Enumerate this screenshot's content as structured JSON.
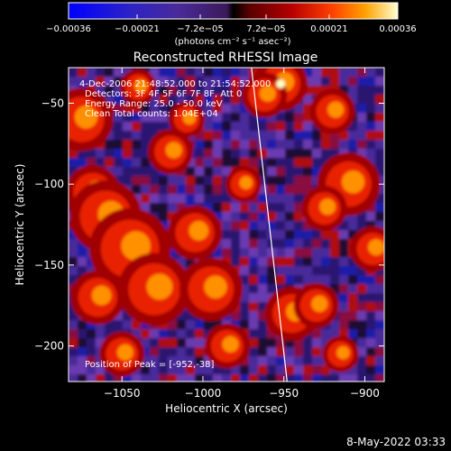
{
  "colorbar": {
    "unit_label": "(photons cm⁻² s⁻¹ asec⁻²)",
    "ticks": [
      {
        "value": -0.00036,
        "label": "−0.00036"
      },
      {
        "value": -0.00021,
        "label": "−0.00021"
      },
      {
        "value": -7.2e-05,
        "label": "−7.2e−05"
      },
      {
        "value": 7.2e-05,
        "label": "7.2e−05"
      },
      {
        "value": 0.00021,
        "label": "0.00021"
      },
      {
        "value": 0.00036,
        "label": "0.00036"
      }
    ],
    "range": [
      -0.00036,
      0.00036
    ]
  },
  "chart_data": {
    "type": "heatmap",
    "title": "Reconstructed RHESSI Image",
    "xlabel": "Heliocentric X (arcsec)",
    "ylabel": "Heliocentric Y (arcsec)",
    "xlim": [
      -1083,
      -888
    ],
    "ylim": [
      -222,
      -28
    ],
    "xticks": [
      {
        "value": -1050,
        "label": "−1050"
      },
      {
        "value": -1000,
        "label": "−1000"
      },
      {
        "value": -950,
        "label": "−950"
      },
      {
        "value": -900,
        "label": "−900"
      }
    ],
    "yticks": [
      {
        "value": -50,
        "label": "−50"
      },
      {
        "value": -100,
        "label": "−100"
      },
      {
        "value": -150,
        "label": "−150"
      },
      {
        "value": -200,
        "label": "−200"
      }
    ],
    "annotations": [
      "4-Dec-2006 21:48:52.000 to 21:54:52.000",
      "Detectors: 3F 4F 5F 6F 7F 8F, Att 0",
      "Energy Range: 25.0 - 50.0 keV",
      "Clean    Total counts: 1.04E+04",
      "Position of Peak = [-952,-38]"
    ],
    "peak": {
      "x": -952,
      "y": -38
    },
    "limb_line": [
      [
        -970,
        -28
      ],
      [
        -948,
        -222
      ]
    ]
  },
  "footer": {
    "date": "8-May-2022 03:33"
  }
}
